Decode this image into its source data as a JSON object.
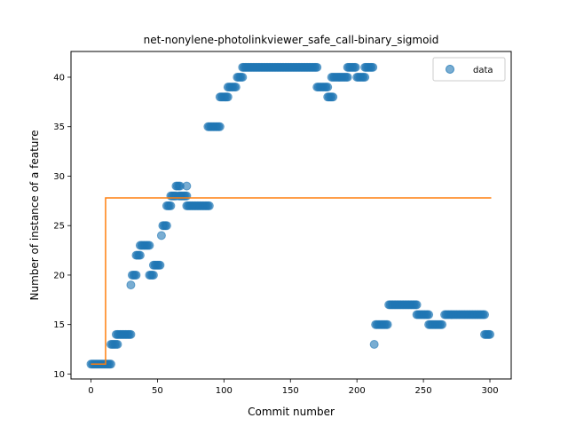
{
  "chart_data": {
    "type": "scatter",
    "title": "net-nonylene-photolinkviewer_safe_call-binary_sigmoid",
    "xlabel": "Commit number",
    "ylabel": "Number of instance of a feature",
    "xlim": [
      -15,
      316
    ],
    "ylim": [
      9.5,
      42.6
    ],
    "xticks": [
      0,
      50,
      100,
      150,
      200,
      250,
      300
    ],
    "yticks": [
      10,
      15,
      20,
      25,
      30,
      35,
      40
    ],
    "grid": false,
    "legend": {
      "position": "top-right",
      "entries": [
        "data"
      ]
    },
    "colors": {
      "points": "#1f77b4",
      "fit": "#ff7f0e"
    },
    "series": [
      {
        "name": "data",
        "kind": "scatter",
        "segments": [
          {
            "x0": 0,
            "x1": 15,
            "y": 11
          },
          {
            "x0": 15,
            "x1": 20,
            "y": 13
          },
          {
            "x0": 19,
            "x1": 30,
            "y": 14
          },
          {
            "x0": 30,
            "x1": 30,
            "y": 19
          },
          {
            "x0": 31,
            "x1": 34,
            "y": 20
          },
          {
            "x0": 34,
            "x1": 37,
            "y": 22
          },
          {
            "x0": 37,
            "x1": 44,
            "y": 23
          },
          {
            "x0": 44,
            "x1": 47,
            "y": 20
          },
          {
            "x0": 47,
            "x1": 52,
            "y": 21
          },
          {
            "x0": 53,
            "x1": 53,
            "y": 24
          },
          {
            "x0": 54,
            "x1": 57,
            "y": 25
          },
          {
            "x0": 57,
            "x1": 60,
            "y": 27
          },
          {
            "x0": 60,
            "x1": 64,
            "y": 28
          },
          {
            "x0": 64,
            "x1": 67,
            "y": 29
          },
          {
            "x0": 66,
            "x1": 72,
            "y": 28
          },
          {
            "x0": 72,
            "x1": 72,
            "y": 29
          },
          {
            "x0": 72,
            "x1": 89,
            "y": 27
          },
          {
            "x0": 88,
            "x1": 97,
            "y": 35
          },
          {
            "x0": 97,
            "x1": 103,
            "y": 38
          },
          {
            "x0": 103,
            "x1": 109,
            "y": 39
          },
          {
            "x0": 110,
            "x1": 114,
            "y": 40
          },
          {
            "x0": 114,
            "x1": 170,
            "y": 41
          },
          {
            "x0": 170,
            "x1": 178,
            "y": 39
          },
          {
            "x0": 178,
            "x1": 182,
            "y": 38
          },
          {
            "x0": 181,
            "x1": 193,
            "y": 40
          },
          {
            "x0": 193,
            "x1": 199,
            "y": 41
          },
          {
            "x0": 200,
            "x1": 206,
            "y": 40
          },
          {
            "x0": 206,
            "x1": 212,
            "y": 41
          },
          {
            "x0": 213,
            "x1": 213,
            "y": 13
          },
          {
            "x0": 214,
            "x1": 223,
            "y": 15
          },
          {
            "x0": 224,
            "x1": 245,
            "y": 17
          },
          {
            "x0": 245,
            "x1": 254,
            "y": 16
          },
          {
            "x0": 254,
            "x1": 264,
            "y": 15
          },
          {
            "x0": 266,
            "x1": 296,
            "y": 16
          },
          {
            "x0": 296,
            "x1": 300,
            "y": 14
          }
        ]
      },
      {
        "name": "",
        "kind": "line",
        "x": [
          0,
          11,
          11,
          301
        ],
        "y": [
          11,
          11,
          27.8,
          27.8
        ]
      }
    ]
  }
}
